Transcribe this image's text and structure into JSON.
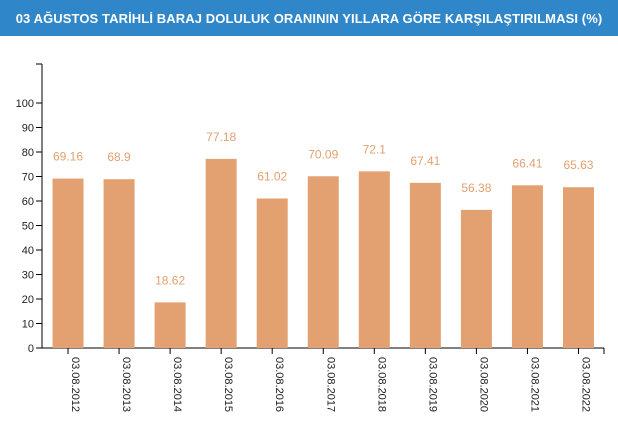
{
  "header": {
    "title": "03 AĞUSTOS TARİHLİ BARAJ DOLULUK ORANININ YILLARA GÖRE KARŞILAŞTIRILMASI (%)",
    "background_color": "#2f86c8"
  },
  "chart_data": {
    "type": "bar",
    "title": "03 AĞUSTOS TARİHLİ BARAJ DOLULUK ORANININ YILLARA GÖRE KARŞILAŞTIRILMASI (%)",
    "xlabel": "",
    "ylabel": "",
    "ylim": [
      0,
      100
    ],
    "yticks": [
      0,
      10,
      20,
      30,
      40,
      50,
      60,
      70,
      80,
      90,
      100
    ],
    "grid": false,
    "bar_color": "#e3a071",
    "label_color": "#e3a071",
    "categories": [
      "03.08.2012",
      "03.08.2013",
      "03.08.2014",
      "03.08.2015",
      "03.08.2016",
      "03.08.2017",
      "03.08.2018",
      "03.08.2019",
      "03.08.2020",
      "03.08.2021",
      "03.08.2022"
    ],
    "values": [
      69.16,
      68.9,
      18.62,
      77.18,
      61.02,
      70.09,
      72.1,
      67.41,
      56.38,
      66.41,
      65.63
    ],
    "value_labels": [
      "69.16",
      "68.9",
      "18.62",
      "77.18",
      "61.02",
      "70.09",
      "72.1",
      "67.41",
      "56.38",
      "66.41",
      "65.63"
    ]
  }
}
